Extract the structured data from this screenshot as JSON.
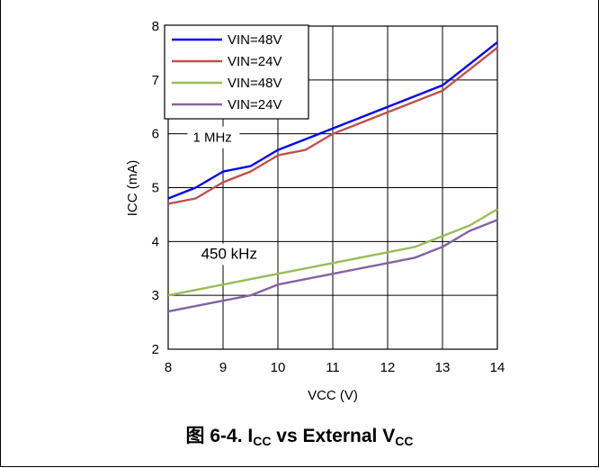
{
  "chart_data": {
    "type": "line",
    "xlabel": "VCC (V)",
    "ylabel": "ICC (mA)",
    "xlim": [
      8,
      14
    ],
    "ylim": [
      2,
      8
    ],
    "xticks": [
      "8",
      "9",
      "10",
      "11",
      "12",
      "13",
      "14"
    ],
    "yticks": [
      "2",
      "3",
      "4",
      "5",
      "6",
      "7",
      "8"
    ],
    "grid": true,
    "legend_position": "top-left",
    "annotations": [
      {
        "text": "1 MHz",
        "x": 8.45,
        "y": 5.85
      },
      {
        "text": "450 kHz",
        "x": 8.6,
        "y": 3.68
      }
    ],
    "series": [
      {
        "name": "VIN=48V",
        "color": "#0000ff",
        "points": [
          [
            8,
            4.8
          ],
          [
            8.5,
            5.0
          ],
          [
            9,
            5.3
          ],
          [
            9.5,
            5.4
          ],
          [
            10,
            5.7
          ],
          [
            10.5,
            5.9
          ],
          [
            11,
            6.1
          ],
          [
            11.5,
            6.3
          ],
          [
            12,
            6.5
          ],
          [
            12.5,
            6.7
          ],
          [
            13,
            6.9
          ],
          [
            13.5,
            7.3
          ],
          [
            14,
            7.7
          ]
        ]
      },
      {
        "name": "VIN=24V",
        "color": "#c0504d",
        "points": [
          [
            8,
            4.7
          ],
          [
            8.5,
            4.8
          ],
          [
            9,
            5.1
          ],
          [
            9.5,
            5.3
          ],
          [
            10,
            5.6
          ],
          [
            10.5,
            5.7
          ],
          [
            11,
            6.0
          ],
          [
            11.5,
            6.2
          ],
          [
            12,
            6.4
          ],
          [
            12.5,
            6.6
          ],
          [
            13,
            6.8
          ],
          [
            13.5,
            7.2
          ],
          [
            14,
            7.6
          ]
        ]
      },
      {
        "name": "VIN=48V",
        "color": "#9bbb59",
        "points": [
          [
            8,
            3.0
          ],
          [
            9,
            3.2
          ],
          [
            10,
            3.4
          ],
          [
            11,
            3.6
          ],
          [
            12,
            3.8
          ],
          [
            12.5,
            3.9
          ],
          [
            13,
            4.1
          ],
          [
            13.5,
            4.3
          ],
          [
            14,
            4.6
          ]
        ]
      },
      {
        "name": "VIN=24V",
        "color": "#8064a2",
        "points": [
          [
            8,
            2.7
          ],
          [
            9,
            2.9
          ],
          [
            9.5,
            3.0
          ],
          [
            10,
            3.2
          ],
          [
            11,
            3.4
          ],
          [
            12,
            3.6
          ],
          [
            12.5,
            3.7
          ],
          [
            13,
            3.9
          ],
          [
            13.5,
            4.2
          ],
          [
            14,
            4.4
          ]
        ]
      }
    ]
  },
  "caption": {
    "prefix": "图 6-4. I",
    "sub1": "CC",
    "middle": " vs External V",
    "sub2": "CC"
  }
}
